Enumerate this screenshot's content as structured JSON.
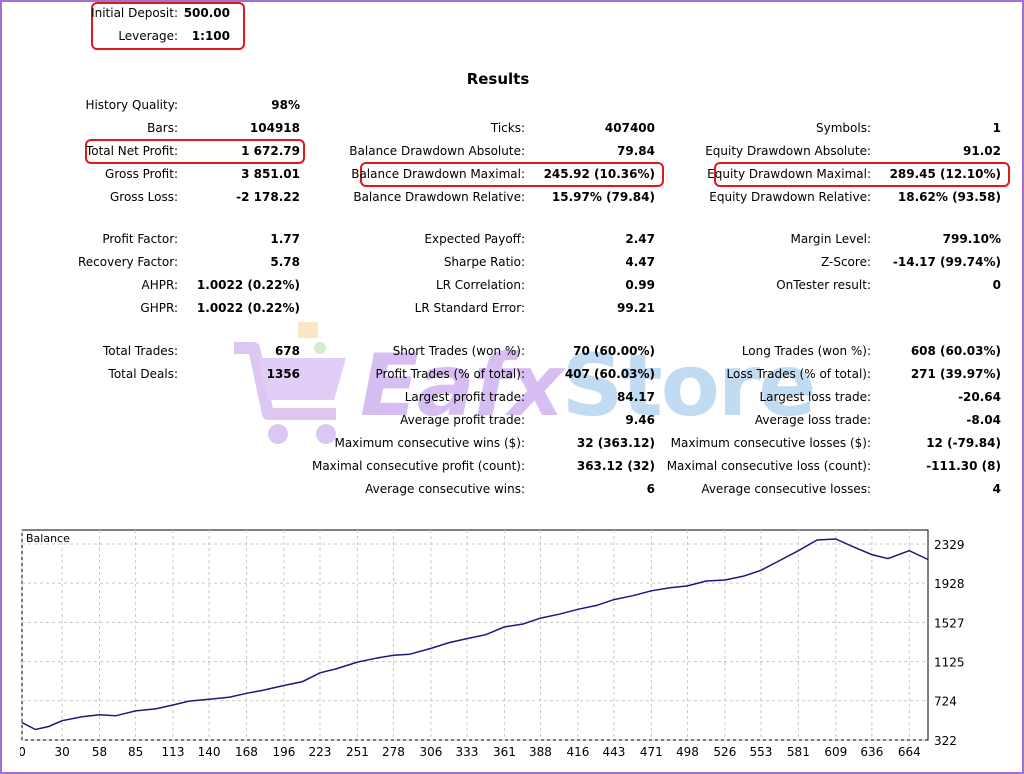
{
  "header": {
    "deposit_label": "Initial Deposit:",
    "deposit_value": "500.00",
    "leverage_label": "Leverage:",
    "leverage_value": "1:100"
  },
  "results_title": "Results",
  "col1": [
    {
      "label": "History Quality:",
      "value": "98%"
    },
    {
      "label": "Bars:",
      "value": "104918"
    },
    {
      "label": "Total Net Profit:",
      "value": "1 672.79"
    },
    {
      "label": "Gross Profit:",
      "value": "3 851.01"
    },
    {
      "label": "Gross Loss:",
      "value": "-2 178.22"
    },
    {
      "label": "Profit Factor:",
      "value": "1.77"
    },
    {
      "label": "Recovery Factor:",
      "value": "5.78"
    },
    {
      "label": "AHPR:",
      "value": "1.0022 (0.22%)"
    },
    {
      "label": "GHPR:",
      "value": "1.0022 (0.22%)"
    },
    {
      "label": "Total Trades:",
      "value": "678"
    },
    {
      "label": "Total Deals:",
      "value": "1356"
    }
  ],
  "col2": [
    {
      "label": "Ticks:",
      "value": "407400"
    },
    {
      "label": "Balance Drawdown Absolute:",
      "value": "79.84"
    },
    {
      "label": "Balance Drawdown Maximal:",
      "value": "245.92 (10.36%)"
    },
    {
      "label": "Balance Drawdown Relative:",
      "value": "15.97% (79.84)"
    },
    {
      "label": "Expected Payoff:",
      "value": "2.47"
    },
    {
      "label": "Sharpe Ratio:",
      "value": "4.47"
    },
    {
      "label": "LR Correlation:",
      "value": "0.99"
    },
    {
      "label": "LR Standard Error:",
      "value": "99.21"
    },
    {
      "label": "Short Trades (won %):",
      "value": "70 (60.00%)"
    },
    {
      "label": "Profit Trades (% of total):",
      "value": "407 (60.03%)"
    },
    {
      "label": "Largest profit trade:",
      "value": "84.17"
    },
    {
      "label": "Average profit trade:",
      "value": "9.46"
    },
    {
      "label": "Maximum consecutive wins ($):",
      "value": "32 (363.12)"
    },
    {
      "label": "Maximal consecutive profit (count):",
      "value": "363.12 (32)"
    },
    {
      "label": "Average consecutive wins:",
      "value": "6"
    }
  ],
  "col3": [
    {
      "label": "Symbols:",
      "value": "1"
    },
    {
      "label": "Equity Drawdown Absolute:",
      "value": "91.02"
    },
    {
      "label": "Equity Drawdown Maximal:",
      "value": "289.45 (12.10%)"
    },
    {
      "label": "Equity Drawdown Relative:",
      "value": "18.62% (93.58)"
    },
    {
      "label": "Margin Level:",
      "value": "799.10%"
    },
    {
      "label": "Z-Score:",
      "value": "-14.17 (99.74%)"
    },
    {
      "label": "OnTester result:",
      "value": "0"
    },
    {
      "label": "Long Trades (won %):",
      "value": "608 (60.03%)"
    },
    {
      "label": "Loss Trades (% of total):",
      "value": "271 (39.97%)"
    },
    {
      "label": "Largest loss trade:",
      "value": "-20.64"
    },
    {
      "label": "Average loss trade:",
      "value": "-8.04"
    },
    {
      "label": "Maximum consecutive losses ($):",
      "value": "12 (-79.84)"
    },
    {
      "label": "Maximal consecutive loss (count):",
      "value": "-111.30 (8)"
    },
    {
      "label": "Average consecutive losses:",
      "value": "4"
    }
  ],
  "watermark": {
    "part1": "Eafx",
    "part2": "Store",
    "icon": "shopping-cart-icon"
  },
  "colors": {
    "highlight": "#e01818",
    "line": "#1a1a80",
    "frame": "#a070d6"
  },
  "chart_data": {
    "type": "line",
    "title": "Balance",
    "x_ticks": [
      0,
      30,
      58,
      85,
      113,
      140,
      168,
      196,
      223,
      251,
      278,
      306,
      333,
      361,
      388,
      416,
      443,
      471,
      498,
      526,
      553,
      581,
      609,
      636,
      664
    ],
    "y_ticks": [
      322,
      724,
      1125,
      1527,
      1928,
      2329
    ],
    "xlim": [
      0,
      678
    ],
    "ylim": [
      322,
      2329
    ],
    "grid": true,
    "series": [
      {
        "x": [
          0,
          10,
          20,
          30,
          45,
          58,
          70,
          85,
          100,
          113,
          125,
          140,
          155,
          168,
          180,
          196,
          210,
          223,
          235,
          251,
          265,
          278,
          290,
          306,
          320,
          333,
          347,
          361,
          375,
          388,
          402,
          416,
          430,
          443,
          457,
          471,
          485,
          498,
          512,
          526,
          540,
          553,
          567,
          581,
          595,
          609,
          622,
          636,
          648,
          664,
          678
        ],
        "y": [
          500,
          430,
          460,
          520,
          560,
          580,
          570,
          620,
          640,
          680,
          720,
          740,
          760,
          800,
          830,
          880,
          920,
          1010,
          1050,
          1120,
          1160,
          1190,
          1200,
          1260,
          1320,
          1360,
          1400,
          1480,
          1510,
          1570,
          1610,
          1660,
          1700,
          1760,
          1800,
          1850,
          1880,
          1900,
          1950,
          1960,
          2000,
          2060,
          2160,
          2260,
          2370,
          2380,
          2300,
          2220,
          2180,
          2260,
          2170
        ]
      }
    ]
  }
}
